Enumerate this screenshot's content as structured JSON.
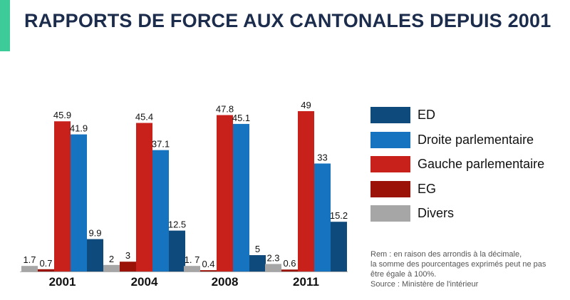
{
  "title": "RAPPORTS DE FORCE AUX CANTONALES DEPUIS 2001",
  "colors": {
    "accent": "#3ecb9a",
    "title": "#1c2c4c"
  },
  "chart_data": {
    "type": "bar",
    "title": "RAPPORTS DE FORCE AUX CANTONALES DEPUIS 2001",
    "categories": [
      "2001",
      "2004",
      "2008",
      "2011"
    ],
    "series": [
      {
        "name": "Divers",
        "color": "#a6a6a6",
        "values": [
          1.7,
          2,
          1.7,
          2.3
        ],
        "labels": [
          "1.7",
          "2",
          "1. 7",
          "2.3"
        ]
      },
      {
        "name": "EG",
        "color": "#9b1208",
        "values": [
          0.7,
          3,
          0.4,
          0.6
        ],
        "labels": [
          "0.7",
          "3",
          "0.4",
          "0.6"
        ]
      },
      {
        "name": "Gauche parlementaire",
        "color": "#c8201a",
        "values": [
          45.9,
          45.4,
          47.8,
          49
        ],
        "labels": [
          "45.9",
          "45.4",
          "47.8",
          "49"
        ]
      },
      {
        "name": "Droite parlementaire",
        "color": "#1673bf",
        "values": [
          41.9,
          37.1,
          45.1,
          33
        ],
        "labels": [
          "41.9",
          "37.1",
          "45.1",
          "33"
        ]
      },
      {
        "name": "ED",
        "color": "#0f4a7c",
        "values": [
          9.9,
          12.5,
          5,
          15.2
        ],
        "labels": [
          "9.9",
          "12.5",
          "5",
          "15.2"
        ]
      }
    ],
    "legend_order": [
      "ED",
      "Droite parlementaire",
      "Gauche parlementaire",
      "EG",
      "Divers"
    ],
    "ylim": [
      0,
      49
    ],
    "grid": false,
    "legend_position": "right"
  },
  "note_lines": [
    "Rem : en raison des arrondis à la décimale,",
    "la somme des pourcentages exprimés peut ne pas",
    "être égale à 100%.",
    "Source : Ministère de l'intérieur"
  ]
}
